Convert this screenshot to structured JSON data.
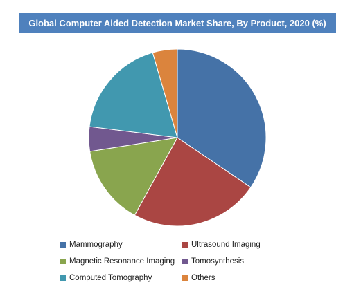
{
  "chart_data": {
    "type": "pie",
    "title": "Global Computer Aided Detection Market Share, By Product, 2020 (%)",
    "slices": [
      {
        "label": "Mammography",
        "value": 34.5,
        "color": "#4572a7"
      },
      {
        "label": "Ultrasound Imaging",
        "value": 23.5,
        "color": "#aa4643"
      },
      {
        "label": "Magnetic Resonance Imaging",
        "value": 14.5,
        "color": "#89a54e"
      },
      {
        "label": "Tomosynthesis",
        "value": 4.5,
        "color": "#71588f"
      },
      {
        "label": "Computed Tomography",
        "value": 18.5,
        "color": "#4198af"
      },
      {
        "label": "Others",
        "value": 4.5,
        "color": "#db843d"
      }
    ],
    "legend_position": "bottom"
  }
}
